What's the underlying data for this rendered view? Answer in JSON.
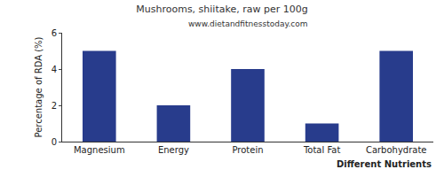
{
  "chart_data": {
    "type": "bar",
    "title": "Mushrooms, shiitake, raw per 100g",
    "subtitle": "www.dietandfitnesstoday.com",
    "categories": [
      "Magnesium",
      "Energy",
      "Protein",
      "Total Fat",
      "Carbohydrate"
    ],
    "values": [
      5,
      2,
      4,
      1,
      5
    ],
    "color": "#283c8c",
    "x_label": "Different Nutrients",
    "y_label": "Percentage of RDA (%)",
    "ylim": [
      0,
      6
    ],
    "yticks": [
      0,
      2,
      4,
      6
    ],
    "grid": false
  }
}
